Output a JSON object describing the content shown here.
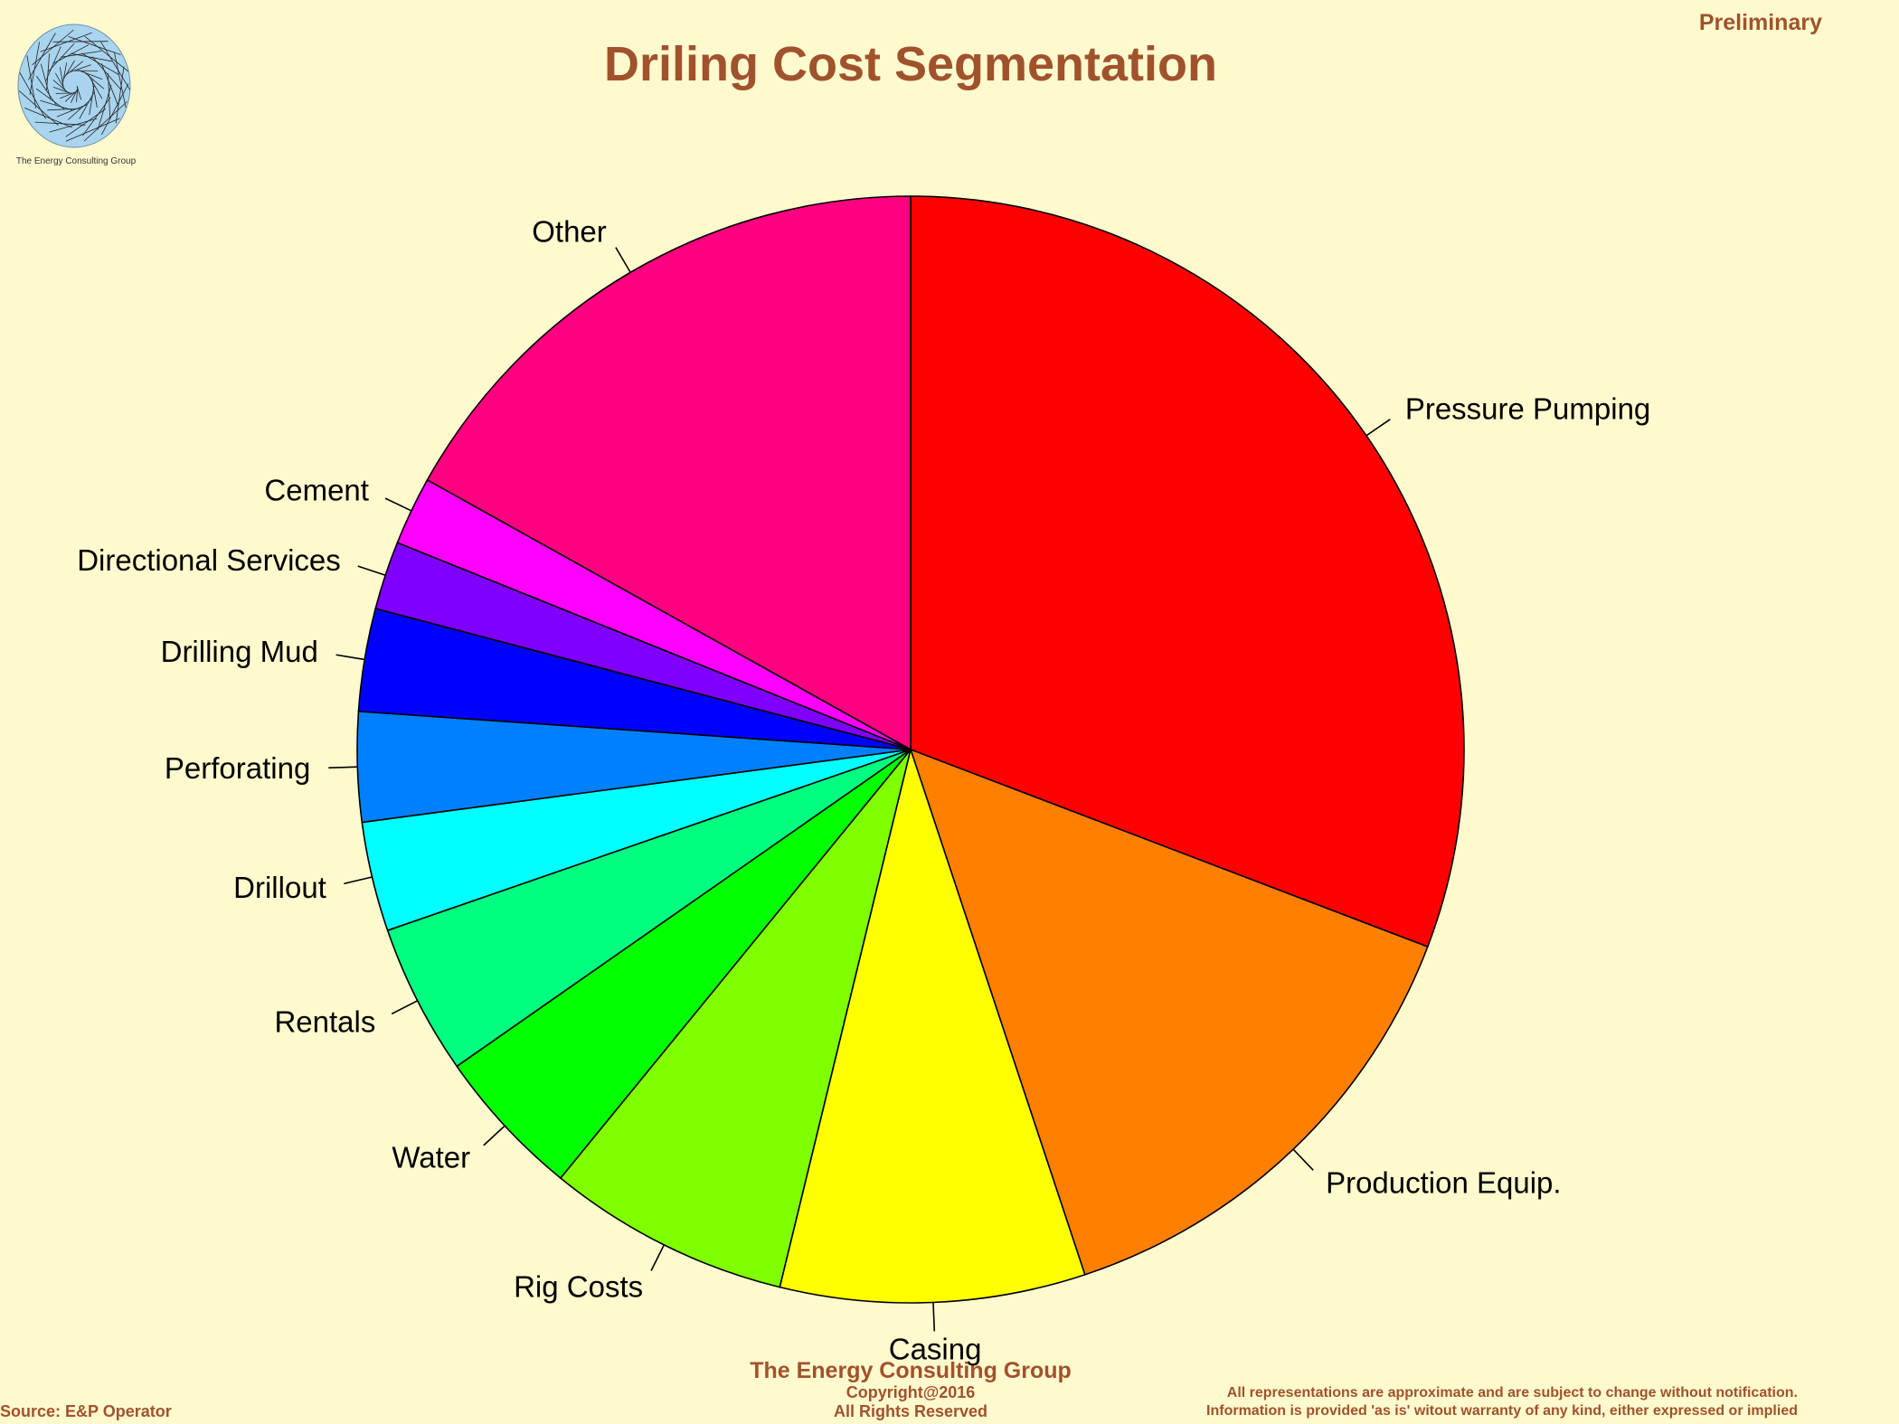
{
  "header": {
    "title": "Driling Cost Segmentation",
    "status": "Preliminary",
    "logo_caption": "The Energy Consulting Group"
  },
  "footer": {
    "source": "Source: E&P Operator",
    "company": "The Energy Consulting Group",
    "copyright": "Copyright@2016",
    "rights": "All Rights Reserved",
    "disclaimer_line1": "All representations are approximate and are subject to change without notification.",
    "disclaimer_line2": "Information is provided 'as is' witout warranty of any kind, either expressed or implied"
  },
  "colors": {
    "background": "#FFFACD",
    "text_accent": "#A0522D",
    "slice_outline": "#000000",
    "logo_fill": "#A9D4EE"
  },
  "chart_data": {
    "type": "pie",
    "title": "Driling Cost Segmentation",
    "start": "12 o'clock",
    "direction": "clockwise",
    "unit": "percent of total (estimated)",
    "slices": [
      {
        "label": "Pressure Pumping",
        "value": 30.8,
        "color": "#FF0000"
      },
      {
        "label": "Production Equip.",
        "value": 14.1,
        "color": "#FF8000"
      },
      {
        "label": "Casing",
        "value": 8.9,
        "color": "#FFFF00"
      },
      {
        "label": "Rig Costs",
        "value": 7.1,
        "color": "#80FF00"
      },
      {
        "label": "Water",
        "value": 4.4,
        "color": "#00FF00"
      },
      {
        "label": "Rentals",
        "value": 4.4,
        "color": "#00FF80"
      },
      {
        "label": "Drillout",
        "value": 3.2,
        "color": "#00FFFF"
      },
      {
        "label": "Perforating",
        "value": 3.2,
        "color": "#0080FF"
      },
      {
        "label": "Drilling Mud",
        "value": 3.0,
        "color": "#0000FF"
      },
      {
        "label": "Directional Services",
        "value": 2.0,
        "color": "#8000FF"
      },
      {
        "label": "Cement",
        "value": 2.0,
        "color": "#FF00FF"
      },
      {
        "label": "Other",
        "value": 16.9,
        "color": "#FF0080"
      }
    ]
  }
}
